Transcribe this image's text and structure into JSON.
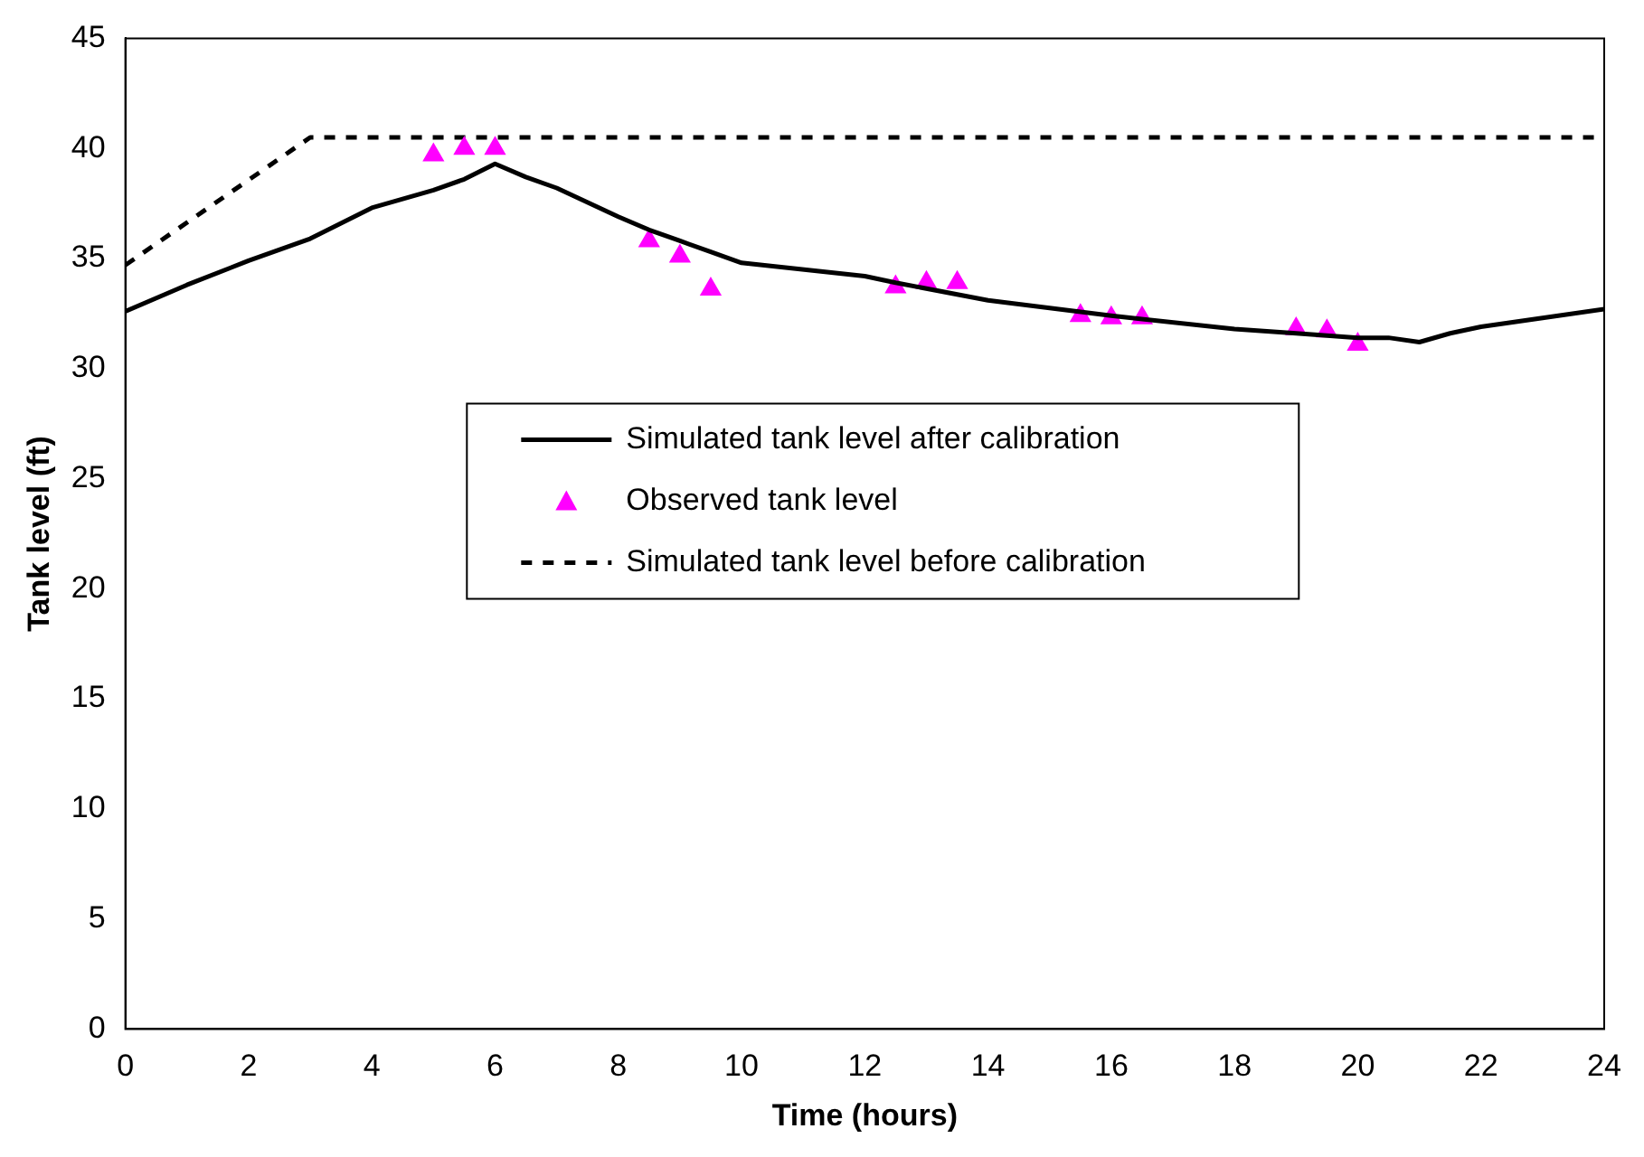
{
  "chart_data": {
    "type": "line",
    "xlabel": "Time (hours)",
    "ylabel": "Tank level (ft)",
    "xlim": [
      0,
      24
    ],
    "xticks": [
      0,
      2,
      4,
      6,
      8,
      10,
      12,
      14,
      16,
      18,
      20,
      22,
      24
    ],
    "ylim": [
      0,
      45
    ],
    "yticks": [
      0,
      5,
      10,
      15,
      20,
      25,
      30,
      35,
      40,
      45
    ],
    "grid": false,
    "legend": "center",
    "series": [
      {
        "name": "Simulated tank level after calibration",
        "color": "#000000",
        "line_style": "solid",
        "marker": "none",
        "x": [
          0,
          1,
          2,
          3,
          4,
          5,
          5.5,
          6,
          6.5,
          7,
          8,
          8.5,
          9,
          9.5,
          10,
          12,
          12.5,
          14,
          16,
          18,
          19,
          20,
          20.5,
          21,
          21.5,
          22,
          23,
          24
        ],
        "values": [
          32.6,
          33.8,
          34.9,
          35.9,
          37.3,
          38.1,
          38.6,
          39.3,
          38.7,
          38.2,
          36.9,
          36.3,
          35.8,
          35.3,
          34.8,
          34.2,
          33.9,
          33.1,
          32.4,
          31.8,
          31.6,
          31.4,
          31.4,
          31.2,
          31.6,
          31.9,
          32.3,
          32.7
        ]
      },
      {
        "name": "Observed tank level",
        "type": "scatter",
        "color": "#ff00ff",
        "marker": "triangle",
        "x": [
          5,
          5.5,
          6,
          8.5,
          9,
          9.5,
          12.5,
          13,
          13.5,
          15.5,
          16,
          16.5,
          19,
          19.5,
          20
        ],
        "values": [
          39.7,
          40,
          40,
          35.8,
          35.1,
          33.6,
          33.7,
          33.9,
          33.9,
          32.4,
          32.3,
          32.3,
          31.8,
          31.7,
          31.1
        ]
      },
      {
        "name": "Simulated tank level before calibration",
        "color": "#000000",
        "line_style": "dashed",
        "marker": "none",
        "x": [
          0,
          3,
          24
        ],
        "values": [
          34.7,
          40.5,
          40.5
        ]
      }
    ]
  }
}
